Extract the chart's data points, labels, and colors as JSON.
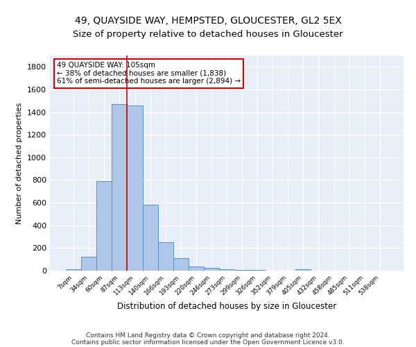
{
  "title1": "49, QUAYSIDE WAY, HEMPSTED, GLOUCESTER, GL2 5EX",
  "title2": "Size of property relative to detached houses in Gloucester",
  "xlabel": "Distribution of detached houses by size in Gloucester",
  "ylabel": "Number of detached properties",
  "categories": [
    "7sqm",
    "34sqm",
    "60sqm",
    "87sqm",
    "113sqm",
    "140sqm",
    "166sqm",
    "193sqm",
    "220sqm",
    "246sqm",
    "273sqm",
    "299sqm",
    "326sqm",
    "352sqm",
    "379sqm",
    "405sqm",
    "432sqm",
    "458sqm",
    "485sqm",
    "511sqm",
    "538sqm"
  ],
  "values": [
    10,
    125,
    790,
    1470,
    1460,
    580,
    250,
    110,
    35,
    25,
    15,
    5,
    5,
    0,
    0,
    10,
    0,
    0,
    0,
    0,
    0
  ],
  "bar_color": "#aec6e8",
  "bar_edge_color": "#5a8fc0",
  "vline_x_index": 4,
  "vline_color": "#cc0000",
  "annotation_text": "49 QUAYSIDE WAY: 105sqm\n← 38% of detached houses are smaller (1,838)\n61% of semi-detached houses are larger (2,894) →",
  "annotation_box_color": "#ffffff",
  "annotation_box_edge": "#cc0000",
  "footer1": "Contains HM Land Registry data © Crown copyright and database right 2024.",
  "footer2": "Contains public sector information licensed under the Open Government Licence v3.0.",
  "ylim": [
    0,
    1900
  ],
  "yticks": [
    0,
    200,
    400,
    600,
    800,
    1000,
    1200,
    1400,
    1600,
    1800
  ],
  "bg_color": "#e8eef8",
  "title1_fontsize": 10,
  "title2_fontsize": 9.5
}
